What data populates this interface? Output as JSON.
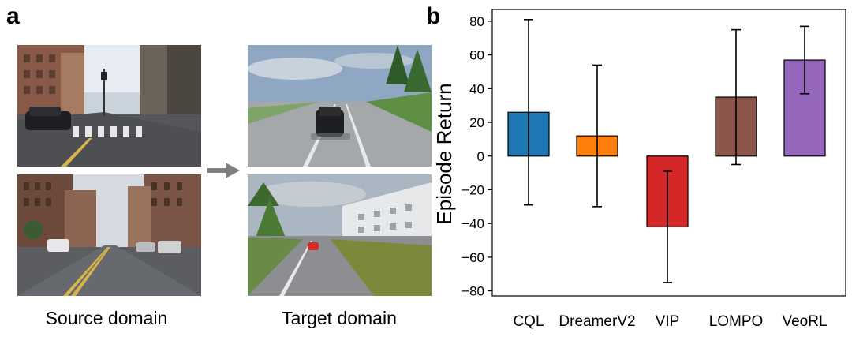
{
  "panels": {
    "a_label": "a",
    "b_label": "b"
  },
  "images": {
    "source_caption": "Source domain",
    "target_caption": "Target domain",
    "arrow_icon": "right-arrow-icon",
    "photos": [
      {
        "name": "source-city-street-1",
        "description": "city-street-crosswalk"
      },
      {
        "name": "source-city-street-2",
        "description": "city-street-parked-cars"
      },
      {
        "name": "target-sim-road-1",
        "description": "simulated-road-car"
      },
      {
        "name": "target-sim-road-2",
        "description": "simulated-road-red-car"
      }
    ]
  },
  "colors": {
    "CQL": "#1f77b4",
    "DreamerV2": "#ff7f0e",
    "VIP": "#d62728",
    "LOMPO": "#8c564b",
    "VeoRL": "#9467bd"
  },
  "chart_data": {
    "type": "bar",
    "categories": [
      "CQL",
      "DreamerV2",
      "VIP",
      "LOMPO",
      "VeoRL"
    ],
    "values": [
      26,
      12,
      -42,
      35,
      57
    ],
    "error_low": [
      -29,
      -30,
      -75,
      -5,
      37
    ],
    "error_high": [
      81,
      54,
      -9,
      75,
      77
    ],
    "title": "",
    "xlabel": "",
    "ylabel": "Episode Return",
    "ylim": [
      -83,
      87
    ],
    "yticks": [
      -80,
      -60,
      -40,
      -20,
      0,
      20,
      40,
      60,
      80
    ],
    "ytick_labels": [
      "−80",
      "−60",
      "−40",
      "−20",
      "0",
      "20",
      "40",
      "60",
      "80"
    ],
    "grid": false,
    "legend": "none"
  }
}
